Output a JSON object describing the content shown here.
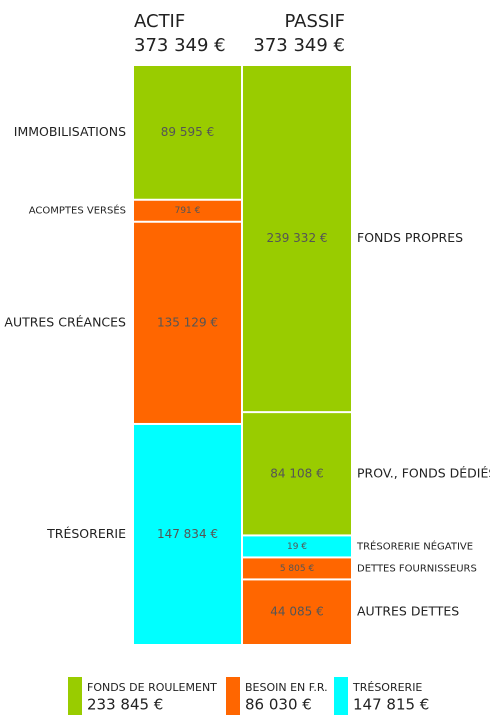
{
  "chart_data": {
    "type": "balance",
    "columns": [
      {
        "name": "ACTIF",
        "total": 373349,
        "total_label": "373 349 €",
        "side": "left",
        "segments": [
          {
            "name": "IMMOBILISATIONS",
            "value": 89595,
            "value_label": "89 595 €",
            "color": "#99cc00"
          },
          {
            "name": "ACOMPTES VERSÉS",
            "value": 791,
            "value_label": "791 €",
            "color": "#ff6600"
          },
          {
            "name": "AUTRES CRÉANCES",
            "value": 135129,
            "value_label": "135 129 €",
            "color": "#ff6600"
          },
          {
            "name": "TRÉSORERIE",
            "value": 147834,
            "value_label": "147 834 €",
            "color": "#00ffff"
          }
        ]
      },
      {
        "name": "PASSIF",
        "total": 373349,
        "total_label": "373 349 €",
        "side": "right",
        "segments": [
          {
            "name": "FONDS PROPRES",
            "value": 239332,
            "value_label": "239 332 €",
            "color": "#99cc00"
          },
          {
            "name": "PROV., FONDS DÉDIÉS",
            "value": 84108,
            "value_label": "84 108 €",
            "color": "#99cc00"
          },
          {
            "name": "TRÉSORERIE NÉGATIVE",
            "value": 19,
            "value_label": "19 €",
            "color": "#00ffff"
          },
          {
            "name": "DETTES FOURNISSEURS",
            "value": 5805,
            "value_label": "5 805 €",
            "color": "#ff6600"
          },
          {
            "name": "AUTRES DETTES",
            "value": 44085,
            "value_label": "44 085 €",
            "color": "#ff6600"
          }
        ]
      }
    ],
    "legend": [
      {
        "name": "FONDS DE ROULEMENT",
        "value": 233845,
        "value_label": "233 845 €",
        "color": "#99cc00"
      },
      {
        "name": "BESOIN EN F.R.",
        "value": 86030,
        "value_label": "86 030 €",
        "color": "#ff6600"
      },
      {
        "name": "TRÉSORERIE",
        "value": 147815,
        "value_label": "147 815 €",
        "color": "#00ffff"
      }
    ]
  }
}
